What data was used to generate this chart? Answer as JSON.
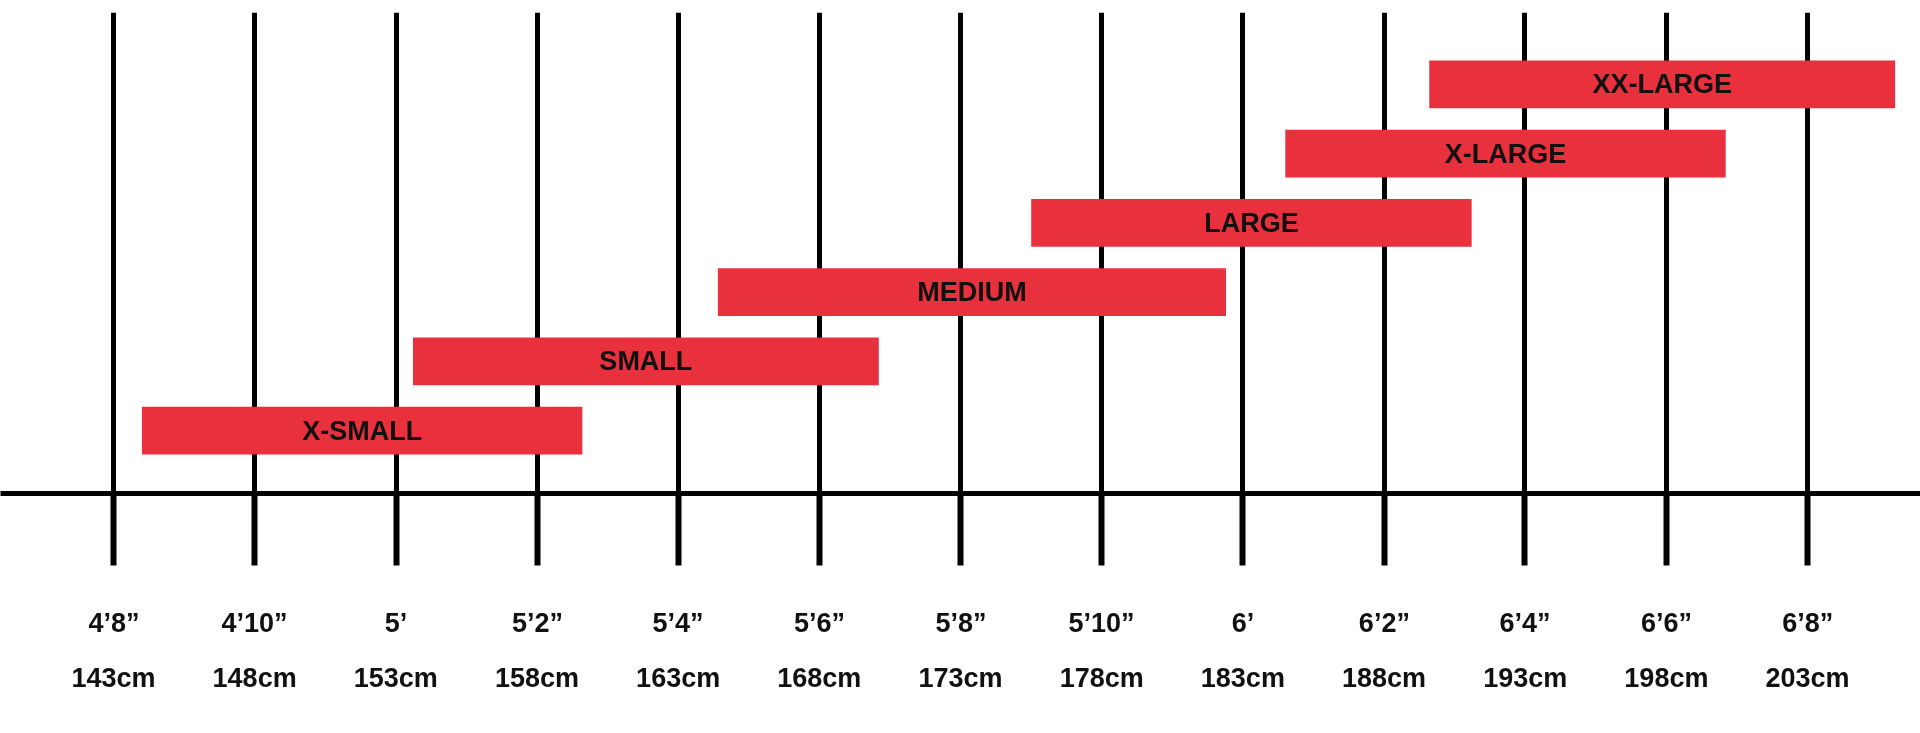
{
  "chart_data": {
    "type": "bar",
    "orientation": "horizontal",
    "categories": [
      "XX-LARGE",
      "X-LARGE",
      "LARGE",
      "MEDIUM",
      "SMALL",
      "X-SMALL"
    ],
    "base": [
      6.22,
      6.05,
      5.75,
      5.38,
      5.02,
      4.7
    ],
    "values": [
      0.55,
      0.52,
      0.52,
      0.6,
      0.55,
      0.52
    ],
    "color": "#e9303d",
    "xlim": [
      4.533,
      6.8
    ],
    "xticks": [
      {
        "value": 4.667,
        "label": "4’8”"
      },
      {
        "value": 4.833,
        "label": "4’10”"
      },
      {
        "value": 5,
        "label": "5’"
      },
      {
        "value": 5.167,
        "label": "5’2”"
      },
      {
        "value": 5.333,
        "label": "5’4”"
      },
      {
        "value": 5.5,
        "label": "5’6”"
      },
      {
        "value": 5.667,
        "label": "5’8”"
      },
      {
        "value": 5.833,
        "label": "5’10”"
      },
      {
        "value": 6,
        "label": "6’"
      },
      {
        "value": 6.167,
        "label": "6’2”"
      },
      {
        "value": 6.333,
        "label": "6’4”"
      },
      {
        "value": 6.5,
        "label": "6’6”"
      },
      {
        "value": 6.667,
        "label": "6’8”"
      }
    ],
    "x2lim": [
      139,
      207
    ],
    "x2ticks": [
      {
        "value": 143,
        "label": "143cm"
      },
      {
        "value": 148,
        "label": "148cm"
      },
      {
        "value": 153,
        "label": "153cm"
      },
      {
        "value": 158,
        "label": "158cm"
      },
      {
        "value": 163,
        "label": "163cm"
      },
      {
        "value": 168,
        "label": "168cm"
      },
      {
        "value": 173,
        "label": "173cm"
      },
      {
        "value": 178,
        "label": "178cm"
      },
      {
        "value": 183,
        "label": "183cm"
      },
      {
        "value": 188,
        "label": "188cm"
      },
      {
        "value": 193,
        "label": "193cm"
      },
      {
        "value": 198,
        "label": "198cm"
      },
      {
        "value": 203,
        "label": "203cm"
      }
    ],
    "grid": "x",
    "tick_labels": "x"
  }
}
